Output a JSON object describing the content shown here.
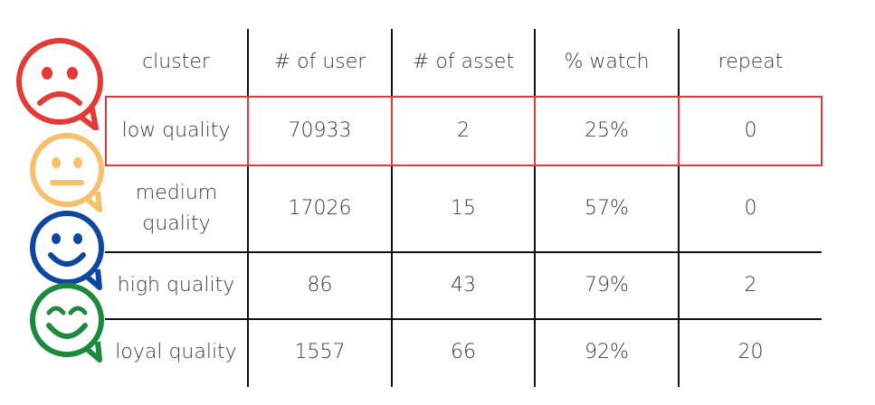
{
  "headers": [
    "cluster",
    "# of user",
    "# of asset",
    "% watch",
    "repeat"
  ],
  "rows": [
    {
      "cluster": "low quality",
      "users": "70933",
      "assets": "2",
      "watch": "25%",
      "repeat": "0"
    },
    {
      "cluster": "medium quality",
      "users": "17026",
      "assets": "15",
      "watch": "57%",
      "repeat": "0"
    },
    {
      "cluster": "high quality",
      "users": "86",
      "assets": "43",
      "watch": "79%",
      "repeat": "2"
    },
    {
      "cluster": "loyal quality",
      "users": "1557",
      "assets": "66",
      "watch": "92%",
      "repeat": "20"
    }
  ],
  "faces": [
    {
      "icon": "sad-face-icon",
      "color": "#e53935"
    },
    {
      "icon": "neutral-face-icon",
      "color": "#f9c06a"
    },
    {
      "icon": "smile-face-icon",
      "color": "#0d47a1"
    },
    {
      "icon": "happy-face-icon",
      "color": "#1b8a3c"
    }
  ],
  "highlight_color": "#e53935"
}
